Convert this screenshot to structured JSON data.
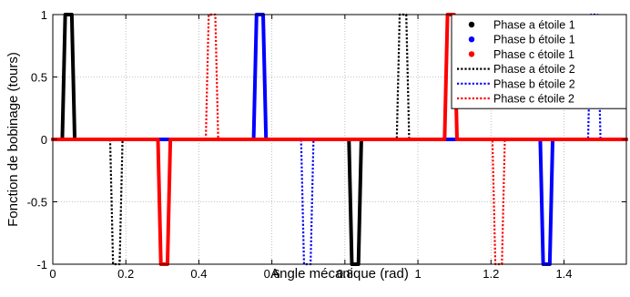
{
  "chart_data": {
    "type": "line",
    "xlabel": "Angle mécanique (rad)",
    "ylabel": "Fonction de bobinage (tours)",
    "xlim": [
      0,
      1.5708
    ],
    "ylim": [
      -1,
      1
    ],
    "xticks": [
      0,
      0.2,
      0.4,
      0.6,
      0.8,
      1,
      1.2,
      1.4
    ],
    "xtick_labels": [
      "0",
      "0.2",
      "0.4",
      "0.6",
      "0.8",
      "1",
      "1.2",
      "1.4"
    ],
    "yticks": [
      -1,
      -0.5,
      0,
      0.5,
      1
    ],
    "ytick_labels": [
      "-1",
      "-0.5",
      "0",
      "0.5",
      "1"
    ],
    "grid": true,
    "legend_position": "top-right",
    "series": [
      {
        "name": "Phase a étoile 1",
        "color": "#000000",
        "style": "solid",
        "x": [
          0,
          0.026,
          0.034,
          0.052,
          0.06,
          0.086,
          0.785,
          0.811,
          0.819,
          0.837,
          0.845,
          0.871,
          1.5708
        ],
        "y": [
          0,
          0,
          1,
          1,
          0,
          0,
          0,
          0,
          -1,
          -1,
          0,
          0,
          0
        ]
      },
      {
        "name": "Phase b étoile 1",
        "color": "#0000ff",
        "style": "solid",
        "x": [
          0,
          0.524,
          0.55,
          0.558,
          0.576,
          0.584,
          0.61,
          1.309,
          1.335,
          1.343,
          1.361,
          1.369,
          1.395,
          1.5708
        ],
        "y": [
          0,
          0,
          0,
          1,
          1,
          0,
          0,
          0,
          0,
          -1,
          -1,
          0,
          0,
          0
        ]
      },
      {
        "name": "Phase c étoile 1",
        "color": "#ff0000",
        "style": "solid",
        "x": [
          0,
          0.262,
          0.288,
          0.296,
          0.314,
          0.322,
          0.348,
          1.047,
          1.073,
          1.081,
          1.099,
          1.107,
          1.133,
          1.5708
        ],
        "y": [
          0,
          0,
          0,
          -1,
          -1,
          0,
          0,
          0,
          0,
          1,
          1,
          0,
          0,
          0
        ]
      },
      {
        "name": "Phase a étoile 2",
        "color": "#000000",
        "style": "dotted",
        "x": [
          0,
          0.131,
          0.157,
          0.165,
          0.183,
          0.191,
          0.217,
          0.916,
          0.942,
          0.95,
          0.968,
          0.976,
          1.002,
          1.5708
        ],
        "y": [
          0,
          0,
          0,
          -1,
          -1,
          0,
          0,
          0,
          0,
          1,
          1,
          0,
          0,
          0
        ]
      },
      {
        "name": "Phase b étoile 2",
        "color": "#0000ff",
        "style": "dotted",
        "x": [
          0,
          0.654,
          0.68,
          0.688,
          0.706,
          0.714,
          0.74,
          1.44,
          1.466,
          1.474,
          1.492,
          1.5,
          1.526,
          1.5708
        ],
        "y": [
          0,
          0,
          0,
          -1,
          -1,
          0,
          0,
          0,
          0,
          1,
          1,
          0,
          0,
          0
        ]
      },
      {
        "name": "Phase c étoile 2",
        "color": "#ff0000",
        "style": "dotted",
        "x": [
          0,
          0.393,
          0.419,
          0.427,
          0.445,
          0.453,
          0.479,
          1.178,
          1.204,
          1.212,
          1.23,
          1.238,
          1.264,
          1.5708
        ],
        "y": [
          0,
          0,
          0,
          1,
          1,
          0,
          0,
          0,
          0,
          -1,
          -1,
          0,
          0,
          0
        ]
      }
    ]
  }
}
